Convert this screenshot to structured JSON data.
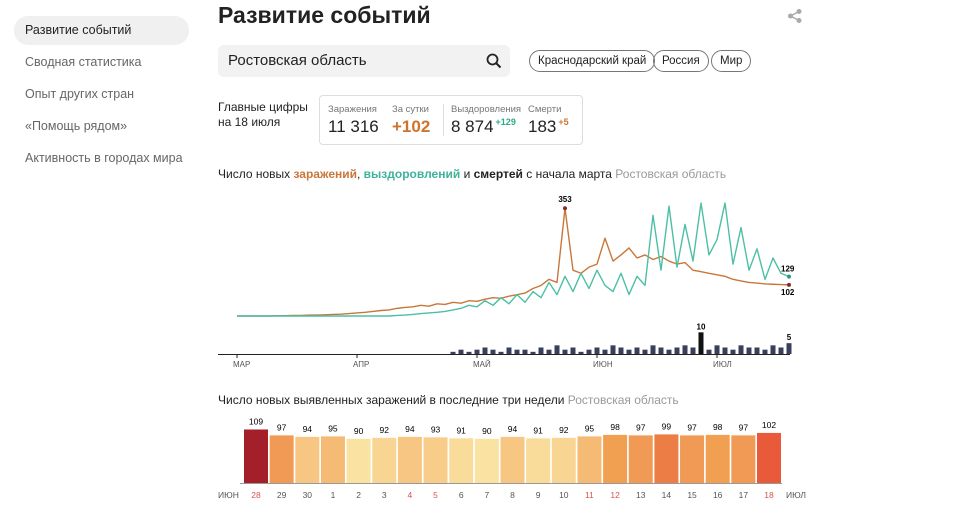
{
  "sidebar": {
    "items": [
      "Развитие событий",
      "Сводная статистика",
      "Опыт других стран",
      "«Помощь рядом»",
      "Активность в городах мира"
    ],
    "active_index": 0
  },
  "header": {
    "title": "Развитие событий"
  },
  "search": {
    "value": "Ростовская область"
  },
  "regions": [
    "Краснодарский край",
    "Россия",
    "Мир"
  ],
  "summary": {
    "caption": [
      "Главные цифры",
      "на 18 июля"
    ],
    "stats": [
      {
        "label": "Заражения",
        "value": "11 316"
      },
      {
        "label": "За сутки",
        "value": "+102"
      },
      {
        "label": "Выздоровления",
        "value": "8 874",
        "delta": "+129"
      },
      {
        "label": "Смерти",
        "value": "183",
        "delta": "+5"
      }
    ]
  },
  "chart_data": [
    {
      "type": "line",
      "title_parts": [
        {
          "text": "Число новых ",
          "color": "#222222"
        },
        {
          "text": "заражений",
          "color": "#c8773a"
        },
        {
          "text": ", ",
          "color": "#222222"
        },
        {
          "text": "выздоровлений",
          "color": "#3fb39a"
        },
        {
          "text": " и ",
          "color": "#222222"
        },
        {
          "text": "смертей",
          "color": "#222222"
        },
        {
          "text": " с начала марта",
          "color": "#222222"
        }
      ],
      "subtitle": "Ростовская область",
      "categories": [
        "МАР",
        null,
        null,
        null,
        null,
        null,
        null,
        null,
        null,
        null,
        null,
        null,
        null,
        null,
        null,
        "АПР",
        null,
        null,
        null,
        null,
        null,
        null,
        null,
        null,
        null,
        null,
        null,
        null,
        null,
        null,
        "МАЙ",
        null,
        null,
        null,
        null,
        null,
        null,
        null,
        null,
        null,
        null,
        null,
        null,
        null,
        null,
        "ИЮН",
        null,
        null,
        null,
        null,
        null,
        null,
        null,
        null,
        null,
        null,
        null,
        null,
        null,
        null,
        "ИЮЛ",
        null,
        null,
        null,
        null,
        null,
        null,
        null,
        null,
        null
      ],
      "ylim": [
        0,
        380
      ],
      "y2lim": [
        0,
        12
      ],
      "series": [
        {
          "name": "заражений",
          "color": "#c8773a",
          "values": [
            0,
            0,
            0,
            0,
            0,
            1,
            1,
            2,
            2,
            3,
            3,
            4,
            5,
            6,
            8,
            10,
            12,
            15,
            18,
            20,
            25,
            28,
            30,
            35,
            32,
            40,
            38,
            45,
            42,
            50,
            48,
            55,
            60,
            58,
            65,
            70,
            75,
            90,
            100,
            120,
            110,
            353,
            150,
            140,
            160,
            170,
            255,
            180,
            200,
            223,
            190,
            200,
            185,
            195,
            180,
            170,
            175,
            150,
            145,
            140,
            135,
            130,
            120,
            115,
            110,
            108,
            105,
            104,
            103,
            102
          ]
        },
        {
          "name": "выздоровлений",
          "color": "#4cbfa6",
          "values": [
            0,
            0,
            0,
            0,
            0,
            0,
            0,
            0,
            0,
            0,
            0,
            0,
            0,
            0,
            0,
            0,
            0,
            0,
            0,
            0,
            2,
            3,
            5,
            8,
            10,
            12,
            15,
            20,
            25,
            35,
            30,
            50,
            35,
            60,
            40,
            70,
            45,
            80,
            60,
            110,
            70,
            130,
            80,
            140,
            90,
            150,
            100,
            80,
            140,
            70,
            130,
            100,
            330,
            150,
            360,
            160,
            300,
            180,
            370,
            200,
            250,
            370,
            170,
            290,
            150,
            220,
            120,
            190,
            140,
            129
          ]
        },
        {
          "name": "смертей",
          "color": "#3a3f5c",
          "axis": "y2",
          "values": [
            0,
            0,
            0,
            0,
            0,
            0,
            0,
            0,
            0,
            0,
            0,
            0,
            0,
            0,
            0,
            0,
            0,
            0,
            0,
            0,
            0,
            0,
            0,
            0,
            0,
            0,
            0,
            1,
            2,
            1,
            2,
            3,
            2,
            1,
            3,
            2,
            2,
            1,
            3,
            2,
            4,
            2,
            3,
            1,
            2,
            3,
            2,
            4,
            3,
            2,
            3,
            2,
            4,
            3,
            2,
            3,
            4,
            3,
            10,
            2,
            4,
            3,
            2,
            4,
            3,
            3,
            2,
            4,
            3,
            5
          ]
        }
      ]
    },
    {
      "type": "bar",
      "title": "Число новых выявленных заражений в последние три недели",
      "subtitle": "Ростовская область",
      "start_label": "ИЮН",
      "end_label": "ИЮЛ",
      "categories": [
        "28",
        "29",
        "30",
        "1",
        "2",
        "3",
        "4",
        "5",
        "6",
        "7",
        "8",
        "9",
        "10",
        "11",
        "12",
        "13",
        "14",
        "15",
        "16",
        "17",
        "18"
      ],
      "category_colors": [
        "#d9534f",
        "#555555",
        "#555555",
        "#555555",
        "#555555",
        "#555555",
        "#d9534f",
        "#d9534f",
        "#555555",
        "#555555",
        "#555555",
        "#555555",
        "#555555",
        "#d9534f",
        "#d9534f",
        "#555555",
        "#555555",
        "#555555",
        "#555555",
        "#555555",
        "#d9534f"
      ],
      "values": [
        109,
        97,
        94,
        95,
        90,
        92,
        94,
        93,
        91,
        90,
        94,
        91,
        92,
        95,
        98,
        97,
        99,
        97,
        98,
        97,
        102
      ],
      "colors": [
        "#a3202a",
        "#f09a55",
        "#f7c682",
        "#f5bb75",
        "#f9e2a2",
        "#f8d592",
        "#f7c682",
        "#f8cd8a",
        "#f9dc9a",
        "#f9e2a2",
        "#f7c682",
        "#f9dc9a",
        "#f8d592",
        "#f5bb75",
        "#f0a050",
        "#f09a55",
        "#ec7d45",
        "#f09a55",
        "#f0a050",
        "#f09a55",
        "#e85a3a"
      ],
      "ylim": [
        0,
        110
      ]
    }
  ]
}
